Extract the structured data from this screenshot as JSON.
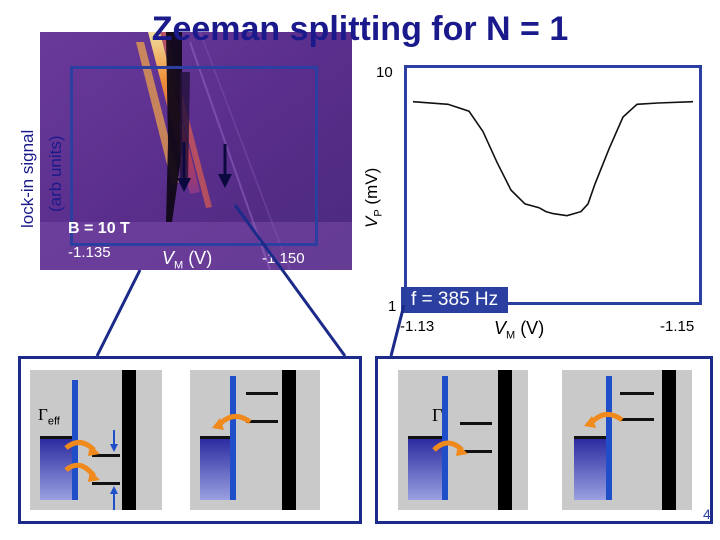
{
  "title": "Zeeman splitting for N = 1",
  "left_plot": {
    "ylabel_line1": "lock-in signal",
    "ylabel_line2": "(arb units)",
    "field_label": "B = 10 T",
    "tick_left": "-1.135",
    "tick_right": "-1.150",
    "xlabel_v": "V",
    "xlabel_sub": "M",
    "xlabel_unit": " (V)"
  },
  "right_plot": {
    "ylabel_v": "V",
    "ylabel_sub": "P",
    "ylabel_unit": " (mV)",
    "y_top": "10",
    "y_bottom": "1",
    "x_left": "-1.13",
    "x_right": "-1.15",
    "xlabel_v": "V",
    "xlabel_sub": "M",
    "xlabel_unit": " (V)",
    "frequency": "f = 385 Hz"
  },
  "chart_data": {
    "type": "line",
    "xlabel": "VM (V)",
    "ylabel": "VP (mV)",
    "xlim": [
      -1.13,
      -1.15
    ],
    "y_scale": "log",
    "ylim": [
      1,
      10
    ],
    "grid": false,
    "x": [
      -1.13,
      -1.1325,
      -1.134,
      -1.135,
      -1.136,
      -1.137,
      -1.138,
      -1.139,
      -1.1395,
      -1.14,
      -1.141,
      -1.142,
      -1.1425,
      -1.143,
      -1.144,
      -1.145,
      -1.146,
      -1.1475,
      -1.15
    ],
    "y": [
      7.5,
      7.3,
      6.8,
      5.5,
      4.0,
      3.0,
      2.6,
      2.5,
      2.4,
      2.35,
      2.3,
      2.4,
      2.6,
      3.2,
      4.6,
      6.4,
      7.3,
      7.4,
      7.5
    ],
    "annotation": "f = 385 Hz"
  },
  "insets": {
    "gamma_eff": "Γ",
    "gamma_eff_sub": "eff",
    "gamma": "Γ"
  },
  "page_number": "4",
  "colors": {
    "title": "#1a1a8c",
    "frame": "#2a3fa0",
    "lead": "#1f4fc8",
    "barrier": "#000000",
    "arrow": "#f08a1c",
    "panel": "#c9c9c9"
  }
}
